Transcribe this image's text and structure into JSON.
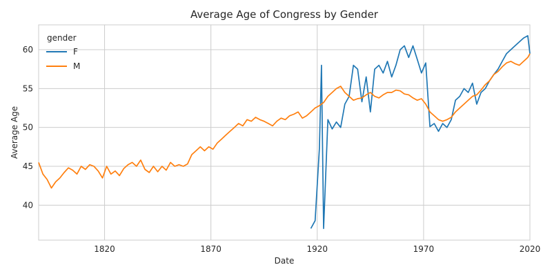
{
  "chart_data": {
    "type": "line",
    "title": "Average Age of Congress by Gender",
    "xlabel": "Date",
    "ylabel": "Average Age",
    "xlim": [
      1789,
      2020
    ],
    "ylim": [
      35.5,
      63.2
    ],
    "xticks": [
      1820,
      1870,
      1920,
      1970,
      2020
    ],
    "yticks": [
      40,
      45,
      50,
      55,
      60
    ],
    "grid": true,
    "legend": {
      "title": "gender",
      "location": "top-left"
    },
    "series": [
      {
        "name": "F",
        "color": "#1f77b4",
        "x": [
          1917,
          1919,
          1921,
          1922,
          1923,
          1925,
          1927,
          1929,
          1931,
          1933,
          1935,
          1937,
          1939,
          1941,
          1943,
          1945,
          1947,
          1949,
          1951,
          1953,
          1955,
          1957,
          1959,
          1961,
          1963,
          1965,
          1967,
          1969,
          1971,
          1973,
          1975,
          1977,
          1979,
          1981,
          1983,
          1985,
          1987,
          1989,
          1991,
          1993,
          1995,
          1997,
          1999,
          2001,
          2003,
          2005,
          2007,
          2009,
          2011,
          2013,
          2015,
          2017,
          2019,
          2020
        ],
        "y": [
          37.0,
          38.0,
          47.3,
          58.0,
          37.0,
          51.0,
          49.8,
          50.7,
          50.0,
          53.0,
          54.0,
          58.0,
          57.5,
          53.3,
          56.5,
          52.0,
          57.5,
          58.0,
          57.0,
          58.5,
          56.5,
          58.0,
          60.0,
          60.5,
          59.0,
          60.5,
          58.8,
          57.0,
          58.3,
          50.1,
          50.5,
          49.5,
          50.5,
          50.0,
          51.0,
          53.5,
          54.0,
          55.0,
          54.5,
          55.7,
          53.0,
          54.5,
          55.0,
          56.0,
          56.8,
          57.5,
          58.5,
          59.5,
          60.0,
          60.5,
          61.0,
          61.5,
          61.8,
          59.5
        ]
      },
      {
        "name": "M",
        "color": "#ff7f0e",
        "x": [
          1789,
          1791,
          1793,
          1795,
          1797,
          1799,
          1801,
          1803,
          1805,
          1807,
          1809,
          1811,
          1813,
          1815,
          1817,
          1819,
          1821,
          1823,
          1825,
          1827,
          1829,
          1831,
          1833,
          1835,
          1837,
          1839,
          1841,
          1843,
          1845,
          1847,
          1849,
          1851,
          1853,
          1855,
          1857,
          1859,
          1861,
          1863,
          1865,
          1867,
          1869,
          1871,
          1873,
          1875,
          1877,
          1879,
          1881,
          1883,
          1885,
          1887,
          1889,
          1891,
          1893,
          1895,
          1897,
          1899,
          1901,
          1903,
          1905,
          1907,
          1909,
          1911,
          1913,
          1915,
          1917,
          1919,
          1921,
          1923,
          1925,
          1927,
          1929,
          1931,
          1933,
          1935,
          1937,
          1939,
          1941,
          1943,
          1945,
          1947,
          1949,
          1951,
          1953,
          1955,
          1957,
          1959,
          1961,
          1963,
          1965,
          1967,
          1969,
          1971,
          1973,
          1975,
          1977,
          1979,
          1981,
          1983,
          1985,
          1987,
          1989,
          1991,
          1993,
          1995,
          1997,
          1999,
          2001,
          2003,
          2005,
          2007,
          2009,
          2011,
          2013,
          2015,
          2017,
          2019,
          2020
        ],
        "y": [
          45.5,
          44.0,
          43.3,
          42.2,
          43.0,
          43.5,
          44.2,
          44.8,
          44.5,
          44.0,
          45.0,
          44.6,
          45.2,
          45.0,
          44.4,
          43.5,
          45.0,
          44.0,
          44.4,
          43.8,
          44.7,
          45.2,
          45.5,
          45.0,
          45.8,
          44.6,
          44.2,
          45.0,
          44.3,
          45.0,
          44.5,
          45.5,
          45.0,
          45.2,
          45.0,
          45.3,
          46.5,
          47.0,
          47.5,
          47.0,
          47.5,
          47.2,
          48.0,
          48.5,
          49.0,
          49.5,
          50.0,
          50.5,
          50.2,
          51.0,
          50.8,
          51.3,
          51.0,
          50.8,
          50.5,
          50.2,
          50.8,
          51.2,
          51.0,
          51.5,
          51.7,
          52.0,
          51.2,
          51.5,
          52.0,
          52.5,
          52.8,
          53.2,
          54.0,
          54.5,
          55.0,
          55.3,
          54.5,
          54.0,
          53.5,
          53.7,
          53.8,
          54.2,
          54.5,
          54.0,
          53.8,
          54.2,
          54.5,
          54.5,
          54.8,
          54.7,
          54.3,
          54.2,
          53.8,
          53.5,
          53.7,
          53.0,
          52.0,
          51.5,
          51.0,
          50.8,
          51.0,
          51.3,
          52.0,
          52.5,
          53.0,
          53.5,
          54.0,
          54.2,
          54.8,
          55.5,
          56.0,
          56.8,
          57.2,
          57.8,
          58.3,
          58.5,
          58.2,
          58.0,
          58.5,
          59.0,
          59.5
        ]
      }
    ]
  }
}
